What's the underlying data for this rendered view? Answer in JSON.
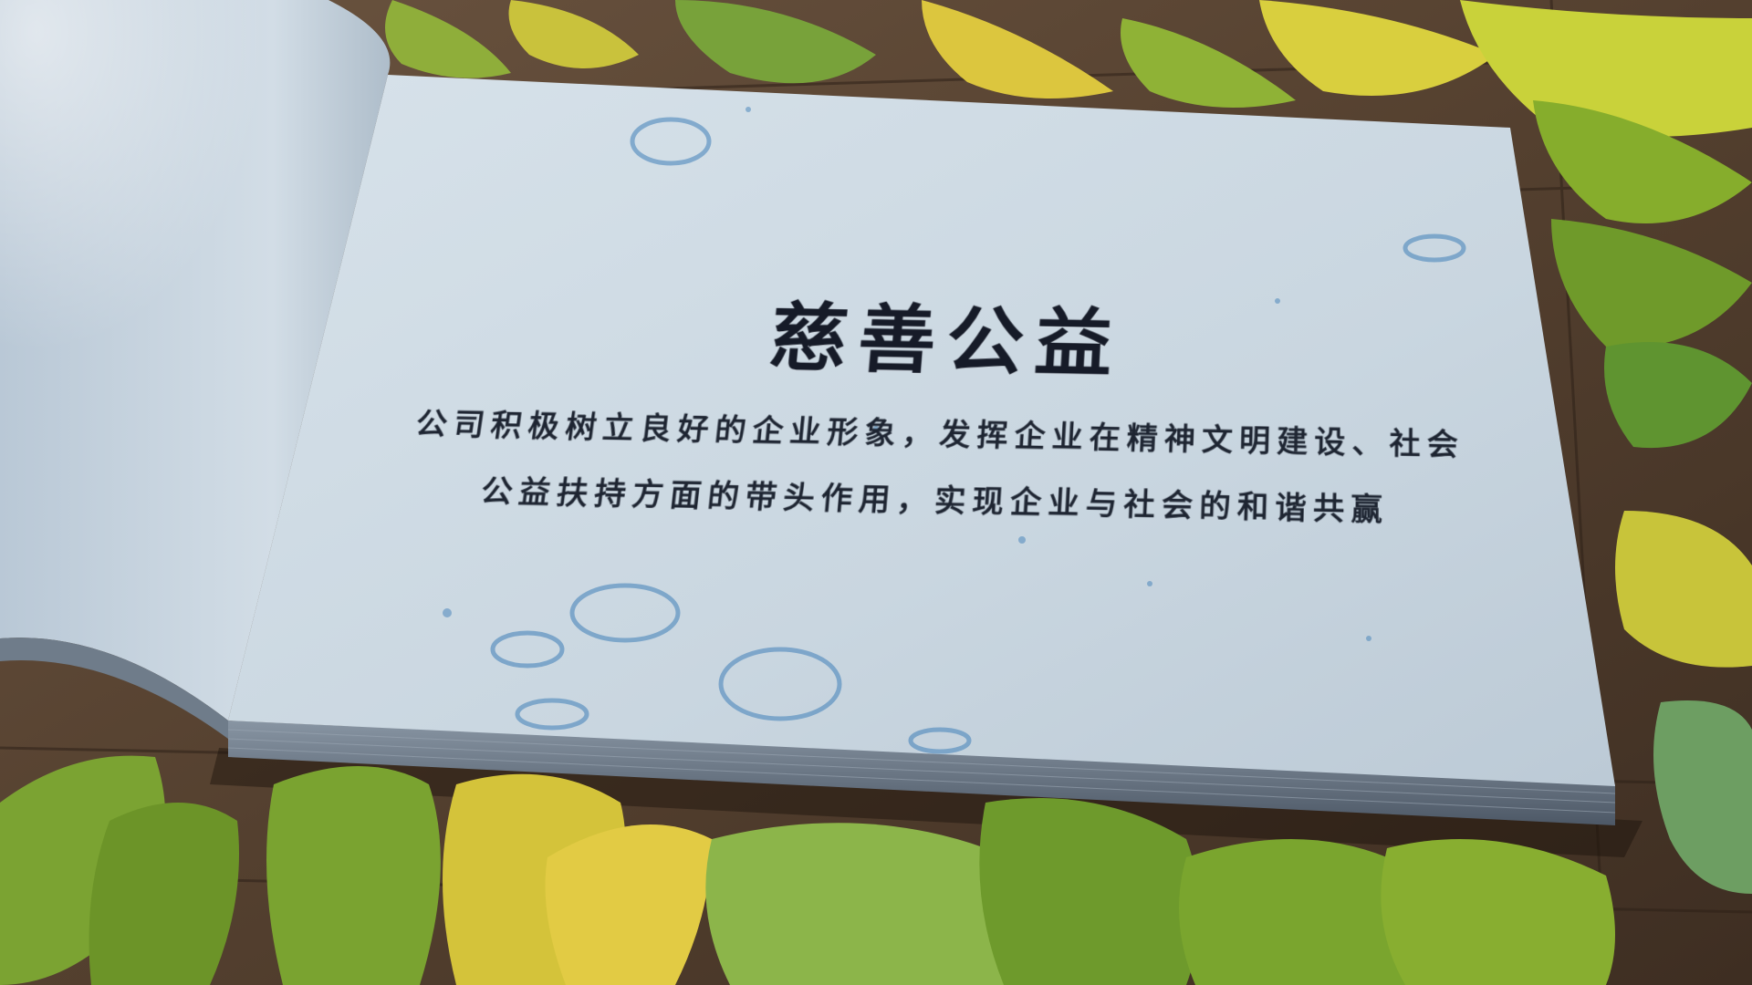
{
  "book": {
    "title": "慈善公益",
    "body": "公司积极树立良好的企业形象，发挥企业在精神文明建设、社会公益扶持方面的带头作用，实现企业与社会的和谐共赢"
  },
  "colors": {
    "page": "#cfdbe4",
    "ink": "#1c2230",
    "stain": "#3f7fb8",
    "wood": "#5a4330",
    "leaf_green": "#6f9a2a",
    "leaf_yellow": "#d8c23a"
  }
}
